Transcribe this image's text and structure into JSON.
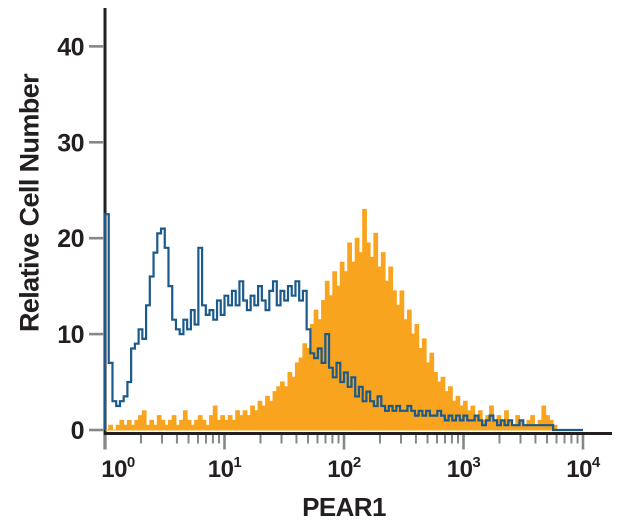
{
  "figure": {
    "background": "#FFFFFF",
    "axis_color": "#231F20",
    "tick_color": "#85878A",
    "text_color": "#231F20"
  },
  "chart_data": {
    "type": "area",
    "subtype": "flow-cytometry-overlay-histogram",
    "title": "",
    "xlabel": "PEAR1",
    "ylabel": "Relative Cell Number",
    "x_scale": "log10",
    "x_range_log10": [
      0,
      4
    ],
    "x_ticks": [
      {
        "base": "10",
        "exp": "0"
      },
      {
        "base": "10",
        "exp": "1"
      },
      {
        "base": "10",
        "exp": "2"
      },
      {
        "base": "10",
        "exp": "3"
      },
      {
        "base": "10",
        "exp": "4"
      }
    ],
    "y_ticks": [
      0,
      10,
      20,
      30,
      40
    ],
    "ylim": [
      0,
      44
    ],
    "grid": false,
    "legend": "none",
    "bins_per_decade": 32,
    "series": [
      {
        "name": "filled-histogram-orange",
        "style": "filled",
        "color": "#F9A41F",
        "values": [
          0,
          0.5,
          0,
          0.5,
          1,
          0.5,
          1,
          0.5,
          1,
          1.5,
          2,
          0.5,
          1,
          0.5,
          1.5,
          1,
          0.5,
          1,
          1.5,
          0.5,
          1,
          2,
          1,
          0.5,
          1,
          1.5,
          1,
          0.5,
          1.5,
          2.5,
          1,
          1.5,
          1,
          1.5,
          1,
          2,
          1.5,
          2,
          1.5,
          2.5,
          2,
          3,
          2.5,
          3.5,
          3,
          4,
          4.5,
          5,
          4.5,
          6,
          5.5,
          7,
          7.5,
          9,
          8.5,
          11,
          12.5,
          11.5,
          13.5,
          15.5,
          14,
          16.5,
          15,
          17.5,
          16.5,
          19.5,
          17.5,
          20,
          18.5,
          23,
          19.5,
          18,
          20.5,
          17,
          18.5,
          15.5,
          17,
          14.5,
          13,
          14.5,
          11.5,
          12.5,
          10,
          11,
          8.5,
          9.5,
          7,
          8,
          6,
          5,
          5.5,
          4,
          4.5,
          3,
          3.5,
          2.5,
          3,
          2,
          2.5,
          1.5,
          2,
          1,
          1.5,
          2.5,
          1,
          1.5,
          1,
          2,
          1,
          0.5,
          1.5,
          1,
          0.5,
          1,
          1.5,
          0.5,
          1,
          2.5,
          1.5,
          1,
          0.5,
          0,
          0,
          0,
          0,
          0,
          0,
          0
        ]
      },
      {
        "name": "open-histogram-blue",
        "style": "open",
        "color": "#1B5A8A",
        "values": [
          22.5,
          7,
          3,
          2.5,
          3,
          3.5,
          5,
          8.5,
          9,
          10.5,
          9.5,
          13,
          16,
          18.5,
          20.5,
          21,
          19,
          15,
          11.5,
          10.5,
          10,
          11.5,
          10.5,
          12.5,
          11,
          19,
          13,
          12,
          12.5,
          11.5,
          13.5,
          12,
          14,
          13,
          14.5,
          13,
          15.5,
          13.5,
          12.5,
          14,
          13,
          15,
          13.5,
          12.5,
          14.5,
          15.5,
          13,
          14.5,
          13.5,
          15,
          14,
          15.5,
          13.5,
          14.5,
          10.5,
          8,
          7.5,
          8.5,
          7,
          10,
          6.5,
          5.5,
          7,
          5,
          6,
          4.5,
          5.5,
          3.5,
          4.5,
          3,
          4,
          3,
          2.5,
          3.5,
          2.5,
          2,
          2.5,
          2,
          2.5,
          2,
          2,
          2.5,
          2,
          1.5,
          2,
          1.5,
          2,
          1.5,
          1.5,
          2,
          1.5,
          1,
          1.5,
          1,
          1.5,
          1,
          1.5,
          1,
          1,
          1.5,
          1,
          0.5,
          1,
          1.5,
          1,
          0.5,
          1,
          0.5,
          1,
          0.5,
          0.5,
          1,
          0.5,
          0.5,
          0.5,
          0.5,
          0.5,
          0.5,
          0.5,
          0.5,
          0,
          0,
          0,
          0,
          0,
          0,
          0,
          0
        ]
      }
    ]
  }
}
